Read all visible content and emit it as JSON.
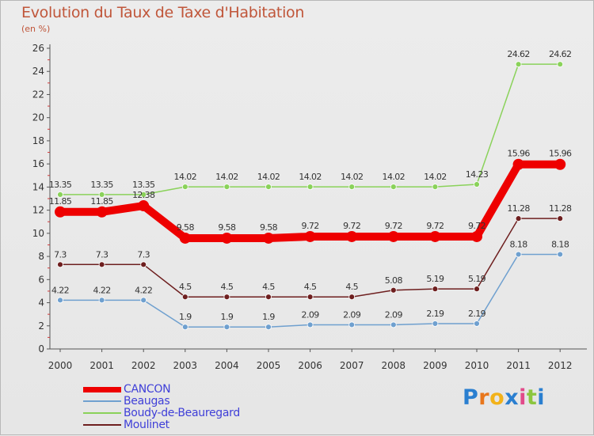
{
  "header": {
    "title": "Evolution du Taux de Taxe d'Habitation",
    "subtitle": "(en %)"
  },
  "chart_data": {
    "type": "line",
    "title": "Evolution du Taux de Taxe d'Habitation",
    "subtitle": "(en %)",
    "xlabel": "",
    "ylabel": "",
    "categories": [
      "2000",
      "2001",
      "2002",
      "2003",
      "2004",
      "2005",
      "2006",
      "2007",
      "2008",
      "2009",
      "2010",
      "2011",
      "2012"
    ],
    "ylim": [
      0,
      26
    ],
    "yticks": [
      0,
      2,
      4,
      6,
      8,
      10,
      12,
      14,
      16,
      18,
      20,
      22,
      24,
      26
    ],
    "grid": false,
    "legend_position": "bottom-left",
    "series": [
      {
        "name": "CANCON",
        "color": "#ee0000",
        "values": [
          11.85,
          11.85,
          12.38,
          9.58,
          9.58,
          9.58,
          9.72,
          9.72,
          9.72,
          9.72,
          9.72,
          15.96,
          15.96
        ],
        "labels": [
          "11.85",
          "11.85",
          "12.38",
          "9.58",
          "9.58",
          "9.58",
          "9.72",
          "9.72",
          "9.72",
          "9.72",
          "9.72",
          "15.96",
          "15.96"
        ]
      },
      {
        "name": "Beaugas",
        "color": "#6fa0cf",
        "values": [
          4.22,
          4.22,
          4.22,
          1.9,
          1.9,
          1.9,
          2.09,
          2.09,
          2.09,
          2.19,
          2.19,
          8.18,
          8.18
        ],
        "labels": [
          "4.22",
          "4.22",
          "4.22",
          "1.9",
          "1.9",
          "1.9",
          "2.09",
          "2.09",
          "2.09",
          "2.19",
          "2.19",
          "8.18",
          "8.18"
        ]
      },
      {
        "name": "Boudy-de-Beauregard",
        "color": "#8ad25a",
        "values": [
          13.35,
          13.35,
          13.35,
          14.02,
          14.02,
          14.02,
          14.02,
          14.02,
          14.02,
          14.02,
          14.23,
          24.62,
          24.62
        ],
        "labels": [
          "13.35",
          "13.35",
          "13.35",
          "14.02",
          "14.02",
          "14.02",
          "14.02",
          "14.02",
          "14.02",
          "14.02",
          "14.23",
          "24.62",
          "24.62"
        ]
      },
      {
        "name": "Moulinet",
        "color": "#6e1f1f",
        "values": [
          7.3,
          7.3,
          7.3,
          4.5,
          4.5,
          4.5,
          4.5,
          4.5,
          5.08,
          5.19,
          5.19,
          11.28,
          11.28
        ],
        "labels": [
          "7.3",
          "7.3",
          "7.3",
          "4.5",
          "4.5",
          "4.5",
          "4.5",
          "4.5",
          "5.08",
          "5.19",
          "5.19",
          "11.28",
          "11.28"
        ]
      }
    ]
  },
  "logo": {
    "text": "Proxiti",
    "colors": [
      "#2a7fd0",
      "#e8761c",
      "#f2b21a",
      "#2a7fd0",
      "#e24a8a",
      "#8cc63f",
      "#2a7fd0"
    ]
  }
}
